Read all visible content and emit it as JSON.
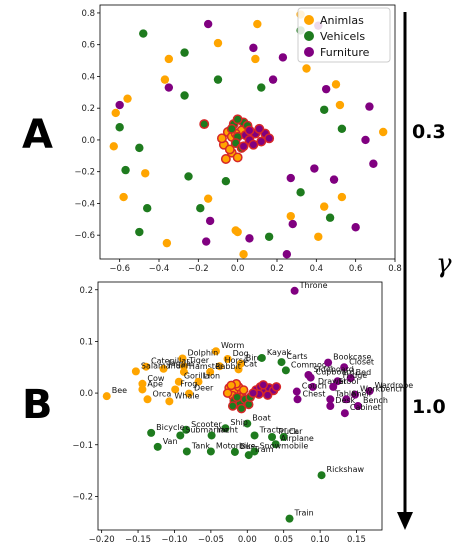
{
  "colors": {
    "animals": "#FFA500",
    "vehicles": "#1E7B1E",
    "furniture": "#800080",
    "highlight_edge": "#D62728",
    "axis": "#000000"
  },
  "panel_letters": [
    "A",
    "B"
  ],
  "gamma_symbol": "γ",
  "gamma_values": [
    "0.3",
    "1.0"
  ],
  "chart_data": [
    {
      "type": "scatter",
      "panel": "A",
      "xlim": [
        -0.7,
        0.8
      ],
      "ylim": [
        -0.75,
        0.85
      ],
      "xticks": [
        -0.6,
        -0.4,
        -0.2,
        0.0,
        0.2,
        0.4,
        0.6,
        0.8
      ],
      "yticks": [
        -0.6,
        -0.4,
        -0.2,
        0.0,
        0.2,
        0.4,
        0.6,
        0.8
      ],
      "xtick_labels": [
        "−0.6",
        "−0.4",
        "−0.2",
        "0.0",
        "0.2",
        "0.4",
        "0.6",
        "0.8"
      ],
      "ytick_labels": [
        "−0.6",
        "−0.4",
        "−0.2",
        "0.0",
        "0.2",
        "0.4",
        "0.6",
        "0.8"
      ],
      "legend": {
        "placement": "top-right",
        "entries": [
          "Animlas",
          "Vehicels",
          "Furniture"
        ]
      },
      "series": [
        {
          "name": "Animlas",
          "points": [
            [
              0.32,
              0.79
            ],
            [
              0.1,
              0.73
            ],
            [
              -0.1,
              0.61
            ],
            [
              0.09,
              0.51
            ],
            [
              -0.35,
              0.51
            ],
            [
              0.35,
              0.45
            ],
            [
              -0.37,
              0.38
            ],
            [
              0.5,
              0.35
            ],
            [
              -0.56,
              0.26
            ],
            [
              0.52,
              0.22
            ],
            [
              -0.62,
              0.17
            ],
            [
              0.74,
              0.05
            ],
            [
              -0.63,
              -0.04
            ],
            [
              -0.47,
              -0.21
            ],
            [
              -0.58,
              -0.36
            ],
            [
              0.53,
              -0.36
            ],
            [
              -0.15,
              -0.37
            ],
            [
              0.44,
              -0.42
            ],
            [
              0.27,
              -0.48
            ],
            [
              -0.01,
              -0.57
            ],
            [
              0.0,
              -0.58
            ],
            [
              0.41,
              -0.61
            ],
            [
              -0.36,
              -0.65
            ],
            [
              0.03,
              -0.72
            ]
          ]
        },
        {
          "name": "Vehicels",
          "points": [
            [
              -0.48,
              0.67
            ],
            [
              0.32,
              0.69
            ],
            [
              -0.27,
              0.55
            ],
            [
              -0.1,
              0.38
            ],
            [
              0.12,
              0.33
            ],
            [
              -0.27,
              0.28
            ],
            [
              0.44,
              0.19
            ],
            [
              -0.6,
              0.08
            ],
            [
              0.53,
              0.07
            ],
            [
              -0.5,
              -0.05
            ],
            [
              -0.57,
              -0.19
            ],
            [
              -0.25,
              -0.23
            ],
            [
              -0.06,
              -0.26
            ],
            [
              0.32,
              -0.33
            ],
            [
              -0.46,
              -0.43
            ],
            [
              -0.19,
              -0.43
            ],
            [
              0.47,
              -0.49
            ],
            [
              -0.5,
              -0.58
            ],
            [
              0.16,
              -0.61
            ]
          ]
        },
        {
          "name": "Furniture",
          "points": [
            [
              -0.15,
              0.73
            ],
            [
              0.41,
              0.72
            ],
            [
              0.08,
              0.58
            ],
            [
              0.23,
              0.52
            ],
            [
              -0.35,
              0.33
            ],
            [
              -0.6,
              0.22
            ],
            [
              0.18,
              0.38
            ],
            [
              0.45,
              0.32
            ],
            [
              0.67,
              0.21
            ],
            [
              0.65,
              0.0
            ],
            [
              0.69,
              -0.15
            ],
            [
              0.39,
              -0.18
            ],
            [
              0.27,
              -0.24
            ],
            [
              0.49,
              -0.25
            ],
            [
              -0.14,
              -0.51
            ],
            [
              0.28,
              -0.53
            ],
            [
              0.6,
              -0.55
            ],
            [
              0.06,
              -0.62
            ],
            [
              -0.16,
              -0.64
            ],
            [
              0.25,
              -0.72
            ]
          ]
        }
      ],
      "highlighted_clusters": [
        {
          "category": "Animlas",
          "points": [
            [
              -0.05,
              0.05
            ],
            [
              -0.03,
              0.02
            ],
            [
              -0.07,
              -0.03
            ],
            [
              -0.03,
              -0.08
            ],
            [
              0.0,
              -0.11
            ],
            [
              -0.06,
              -0.12
            ],
            [
              -0.04,
              -0.06
            ],
            [
              0.02,
              0.06
            ],
            [
              -0.01,
              0.04
            ],
            [
              -0.08,
              0.01
            ]
          ]
        },
        {
          "category": "Vehicels",
          "points": [
            [
              -0.02,
              0.1
            ],
            [
              0.03,
              0.11
            ],
            [
              -0.03,
              0.07
            ],
            [
              0.0,
              0.02
            ],
            [
              -0.01,
              -0.02
            ],
            [
              0.02,
              -0.05
            ],
            [
              -0.17,
              0.1
            ],
            [
              0.05,
              0.09
            ],
            [
              0.0,
              0.13
            ]
          ]
        },
        {
          "category": "Furniture",
          "points": [
            [
              0.04,
              0.03
            ],
            [
              0.06,
              0.0
            ],
            [
              0.09,
              0.04
            ],
            [
              0.12,
              -0.01
            ],
            [
              0.14,
              0.04
            ],
            [
              0.08,
              -0.03
            ],
            [
              0.03,
              -0.04
            ],
            [
              0.11,
              0.07
            ],
            [
              0.16,
              0.01
            ],
            [
              0.06,
              0.06
            ]
          ]
        }
      ]
    },
    {
      "type": "scatter",
      "panel": "B",
      "xlim": [
        -0.205,
        0.185
      ],
      "ylim": [
        -0.265,
        0.215
      ],
      "xticks": [
        -0.2,
        -0.15,
        -0.1,
        -0.05,
        0.0,
        0.05,
        0.1,
        0.15
      ],
      "yticks": [
        -0.2,
        -0.1,
        0.0,
        0.1,
        0.2
      ],
      "xtick_labels": [
        "−0.20",
        "−0.15",
        "−0.10",
        "−0.05",
        "0.00",
        "0.05",
        "0.10",
        "0.15"
      ],
      "ytick_labels": [
        "−0.2",
        "−0.1",
        "0.0",
        "0.1",
        "0.2"
      ],
      "series": [
        {
          "name": "Animlas",
          "points": [
            {
              "label": "Worm",
              "x": -0.043,
              "y": 0.081
            },
            {
              "label": "Dolphin",
              "x": -0.089,
              "y": 0.067
            },
            {
              "label": "Dog",
              "x": -0.027,
              "y": 0.066
            },
            {
              "label": "Bird",
              "x": -0.009,
              "y": 0.057
            },
            {
              "label": "Tiger",
              "x": -0.087,
              "y": 0.052
            },
            {
              "label": "Horse",
              "x": -0.038,
              "y": 0.052
            },
            {
              "label": "Catepillar",
              "x": -0.139,
              "y": 0.051
            },
            {
              "label": "Jaguar",
              "x": -0.115,
              "y": 0.047
            },
            {
              "label": "Cat",
              "x": -0.012,
              "y": 0.046
            },
            {
              "label": "Salamander",
              "x": -0.153,
              "y": 0.042
            },
            {
              "label": "Hamster",
              "x": -0.087,
              "y": 0.041
            },
            {
              "label": "Rabbit",
              "x": -0.051,
              "y": 0.041
            },
            {
              "label": "Gorilla",
              "x": -0.094,
              "y": 0.022
            },
            {
              "label": "Lion",
              "x": -0.067,
              "y": 0.022
            },
            {
              "label": "Cow",
              "x": -0.144,
              "y": 0.018
            },
            {
              "label": "Ape",
              "x": -0.144,
              "y": 0.007
            },
            {
              "label": "Frog",
              "x": -0.099,
              "y": 0.007
            },
            {
              "label": "Deer",
              "x": -0.08,
              "y": -0.001
            },
            {
              "label": "Orca",
              "x": -0.137,
              "y": -0.012
            },
            {
              "label": "Whale",
              "x": -0.107,
              "y": -0.016
            },
            {
              "label": "Bee",
              "x": -0.193,
              "y": -0.006
            }
          ]
        },
        {
          "name": "Vehicels",
          "points": [
            {
              "label": "Kayak",
              "x": 0.02,
              "y": 0.068
            },
            {
              "label": "Carts",
              "x": 0.047,
              "y": 0.06
            },
            {
              "label": "Commode",
              "x": 0.053,
              "y": 0.044
            },
            {
              "label": "Boat",
              "x": 0.0,
              "y": -0.059
            },
            {
              "label": "Ship",
              "x": -0.03,
              "y": -0.068
            },
            {
              "label": "Scooter",
              "x": -0.084,
              "y": -0.071
            },
            {
              "label": "Bicycle",
              "x": -0.132,
              "y": -0.077
            },
            {
              "label": "Submarine",
              "x": -0.092,
              "y": -0.082
            },
            {
              "label": "Yacht",
              "x": -0.049,
              "y": -0.082
            },
            {
              "label": "Tractor",
              "x": 0.01,
              "y": -0.082
            },
            {
              "label": "Truck",
              "x": 0.034,
              "y": -0.085
            },
            {
              "label": "Car",
              "x": 0.05,
              "y": -0.085
            },
            {
              "label": "Airplane",
              "x": 0.039,
              "y": -0.099
            },
            {
              "label": "Van",
              "x": -0.123,
              "y": -0.104
            },
            {
              "label": "Tank",
              "x": -0.083,
              "y": -0.113
            },
            {
              "label": "Motorbike",
              "x": -0.05,
              "y": -0.113
            },
            {
              "label": "Bus",
              "x": -0.017,
              "y": -0.114
            },
            {
              "label": "Snowmobile",
              "x": 0.01,
              "y": -0.113
            },
            {
              "label": "Tram",
              "x": 0.002,
              "y": -0.12
            },
            {
              "label": "Rickshaw",
              "x": 0.102,
              "y": -0.159
            },
            {
              "label": "Train",
              "x": 0.058,
              "y": -0.243
            }
          ]
        },
        {
          "name": "Furniture",
          "points": [
            {
              "label": "Throne",
              "x": 0.065,
              "y": 0.198
            },
            {
              "label": "Bookcase",
              "x": 0.111,
              "y": 0.059
            },
            {
              "label": "Closet",
              "x": 0.133,
              "y": 0.05
            },
            {
              "label": "Sideboard",
              "x": 0.084,
              "y": 0.035
            },
            {
              "label": "Cupboard",
              "x": 0.087,
              "y": 0.03
            },
            {
              "label": "Bed",
              "x": 0.142,
              "y": 0.029
            },
            {
              "label": "Fridge",
              "x": 0.124,
              "y": 0.023
            },
            {
              "label": "Drawer",
              "x": 0.09,
              "y": 0.012
            },
            {
              "label": "Stool",
              "x": 0.118,
              "y": 0.012
            },
            {
              "label": "Couch",
              "x": 0.068,
              "y": 0.003
            },
            {
              "label": "Wardrobe",
              "x": 0.168,
              "y": 0.004
            },
            {
              "label": "Workbench",
              "x": 0.148,
              "y": -0.003
            },
            {
              "label": "Chest",
              "x": 0.069,
              "y": -0.012
            },
            {
              "label": "Table",
              "x": 0.114,
              "y": -0.012
            },
            {
              "label": "Shelf",
              "x": 0.136,
              "y": -0.012
            },
            {
              "label": "Desk",
              "x": 0.114,
              "y": -0.025
            },
            {
              "label": "Bench",
              "x": 0.152,
              "y": -0.025
            },
            {
              "label": "Cabinet",
              "x": 0.134,
              "y": -0.039
            }
          ]
        }
      ],
      "highlighted_clusters": [
        {
          "category": "Animlas",
          "points": [
            [
              -0.025,
              0.01
            ],
            [
              -0.018,
              0.004
            ],
            [
              -0.012,
              0.012
            ],
            [
              -0.02,
              -0.005
            ],
            [
              -0.008,
              0.0
            ],
            [
              -0.027,
              0.0
            ],
            [
              -0.015,
              0.018
            ],
            [
              -0.005,
              0.006
            ],
            [
              -0.022,
              0.015
            ],
            [
              -0.01,
              -0.008
            ]
          ]
        },
        {
          "category": "Vehicels",
          "points": [
            [
              -0.018,
              -0.015
            ],
            [
              -0.01,
              -0.02
            ],
            [
              -0.003,
              -0.012
            ],
            [
              -0.02,
              -0.025
            ],
            [
              -0.008,
              -0.03
            ],
            [
              0.002,
              -0.022
            ],
            [
              -0.014,
              -0.008
            ],
            [
              0.004,
              -0.008
            ]
          ]
        },
        {
          "category": "Furniture",
          "points": [
            [
              0.012,
              0.006
            ],
            [
              0.018,
              0.012
            ],
            [
              0.024,
              0.003
            ],
            [
              0.03,
              0.01
            ],
            [
              0.036,
              0.005
            ],
            [
              0.016,
              -0.002
            ],
            [
              0.028,
              -0.004
            ],
            [
              0.04,
              0.012
            ],
            [
              0.022,
              0.016
            ],
            [
              0.008,
              0.0
            ]
          ]
        }
      ]
    }
  ]
}
